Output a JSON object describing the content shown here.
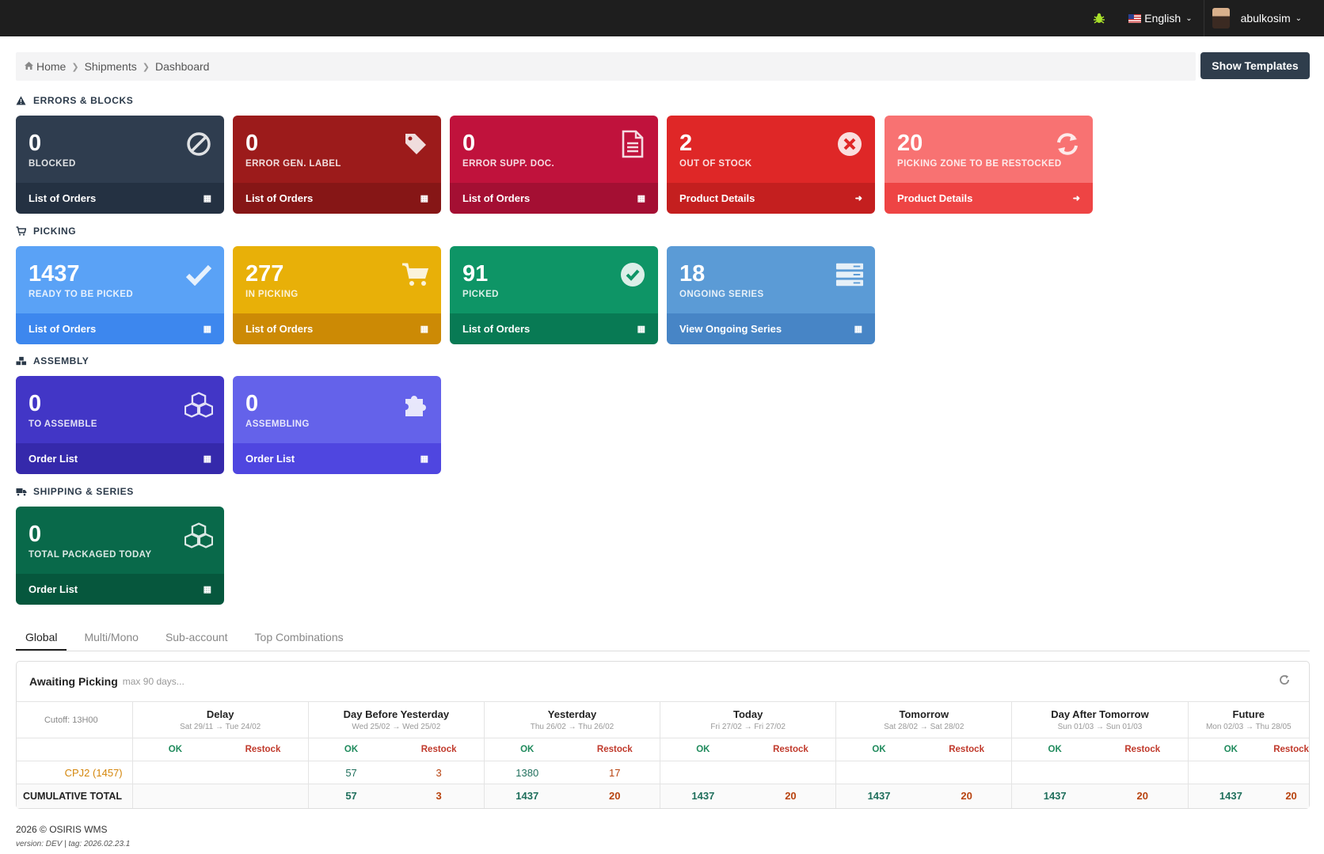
{
  "topbar": {
    "bug_icon": "bug-icon",
    "language": "English",
    "username": "abulkosim"
  },
  "breadcrumb": {
    "items": [
      "Home",
      "Shipments",
      "Dashboard"
    ]
  },
  "show_templates_label": "Show Templates",
  "sections": {
    "errors": "ERRORS & BLOCKS",
    "picking": "PICKING",
    "assembly": "ASSEMBLY",
    "shipping": "SHIPPING & SERIES"
  },
  "cards": {
    "blocked": {
      "value": "0",
      "label": "BLOCKED",
      "link": "List of Orders",
      "color": "#2f3d4f",
      "footer_color": "#243142",
      "icon": "ban-icon"
    },
    "error_gen_label": {
      "value": "0",
      "label": "ERROR GEN. LABEL",
      "link": "List of Orders",
      "color": "#9c1b1b",
      "footer_color": "#861616",
      "icon": "tag-icon"
    },
    "error_supp_doc": {
      "value": "0",
      "label": "ERROR SUPP. DOC.",
      "link": "List of Orders",
      "color": "#c0123c",
      "footer_color": "#a40f33",
      "icon": "document-icon"
    },
    "out_of_stock": {
      "value": "2",
      "label": "OUT OF STOCK",
      "link": "Product Details",
      "color": "#df2727",
      "footer_color": "#c41f1f",
      "icon": "times-circle-icon"
    },
    "restock": {
      "value": "20",
      "label": "PICKING ZONE TO BE RESTOCKED",
      "link": "Product Details",
      "color": "#f87272",
      "footer_color": "#ee4444",
      "icon": "refresh-icon"
    },
    "ready": {
      "value": "1437",
      "label": "READY TO BE PICKED",
      "link": "List of Orders",
      "color": "#5aa2f6",
      "footer_color": "#3d87ee",
      "icon": "check-icon"
    },
    "in_picking": {
      "value": "277",
      "label": "IN PICKING",
      "link": "List of Orders",
      "color": "#e8b008",
      "footer_color": "#cc8a05",
      "icon": "cart-icon"
    },
    "picked": {
      "value": "91",
      "label": "PICKED",
      "link": "List of Orders",
      "color": "#0e9566",
      "footer_color": "#087a54",
      "icon": "check-circle-icon"
    },
    "ongoing": {
      "value": "18",
      "label": "ONGOING SERIES",
      "link": "View Ongoing Series",
      "color": "#5b9bd6",
      "footer_color": "#4785c6",
      "icon": "server-icon"
    },
    "to_assemble": {
      "value": "0",
      "label": "TO ASSEMBLE",
      "link": "Order List",
      "color": "#4236c6",
      "footer_color": "#3529ab",
      "icon": "cubes-icon"
    },
    "assembling": {
      "value": "0",
      "label": "ASSEMBLING",
      "link": "Order List",
      "color": "#6462ea",
      "footer_color": "#4f46e0",
      "icon": "puzzle-icon"
    },
    "packaged": {
      "value": "0",
      "label": "TOTAL PACKAGED TODAY",
      "link": "Order List",
      "color": "#09694a",
      "footer_color": "#06573d",
      "icon": "cubes-icon"
    }
  },
  "tabs": [
    "Global",
    "Multi/Mono",
    "Sub-account",
    "Top Combinations"
  ],
  "panel": {
    "title": "Awaiting Picking",
    "subtitle": "max 90 days...",
    "cutoff": "Cutoff: 13H00",
    "columns": [
      {
        "title": "Delay",
        "range": "Sat 29/11 → Tue 24/02"
      },
      {
        "title": "Day Before Yesterday",
        "range": "Wed 25/02 → Wed 25/02"
      },
      {
        "title": "Yesterday",
        "range": "Thu 26/02 → Thu 26/02"
      },
      {
        "title": "Today",
        "range": "Fri 27/02 → Fri 27/02"
      },
      {
        "title": "Tomorrow",
        "range": "Sat 28/02 → Sat 28/02"
      },
      {
        "title": "Day After Tomorrow",
        "range": "Sun 01/03 → Sun 01/03"
      },
      {
        "title": "Future",
        "range": "Mon 02/03 → Thu 28/05"
      }
    ],
    "ok_label": "OK",
    "restock_label": "Restock",
    "rows": [
      {
        "name": "CPJ2 (1457)",
        "values": [
          "",
          "",
          "57",
          "3",
          "1380",
          "17",
          "",
          "",
          "",
          "",
          "",
          "",
          "",
          ""
        ]
      }
    ],
    "total": {
      "name": "CUMULATIVE TOTAL",
      "values": [
        "",
        "",
        "57",
        "3",
        "1437",
        "20",
        "1437",
        "20",
        "1437",
        "20",
        "1437",
        "20",
        "1437",
        "20"
      ]
    }
  },
  "footer": {
    "copyright": "2026 © OSIRIS WMS",
    "version": "version: DEV | tag: 2026.02.23.1"
  }
}
